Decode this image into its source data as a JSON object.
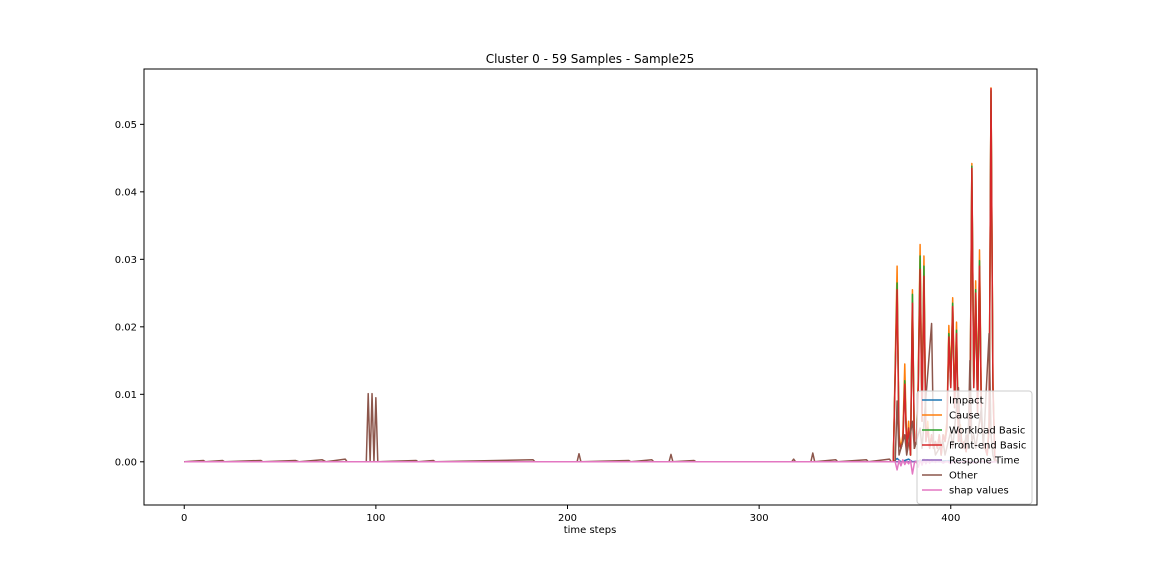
{
  "chart_data": {
    "type": "line",
    "title": "Cluster 0 - 59 Samples - Sample25",
    "xlabel": "time steps",
    "ylabel": "",
    "xlim": [
      -21,
      445
    ],
    "ylim": [
      -0.0064,
      0.0582
    ],
    "xticks": [
      0,
      100,
      200,
      300,
      400
    ],
    "xtick_labels": [
      "0",
      "100",
      "200",
      "300",
      "400"
    ],
    "yticks": [
      0.0,
      0.01,
      0.02,
      0.03,
      0.04,
      0.05
    ],
    "ytick_labels": [
      "0.00",
      "0.01",
      "0.02",
      "0.03",
      "0.04",
      "0.05"
    ],
    "grid": false,
    "legend_position": "lower-right",
    "series": [
      {
        "name": "Impact",
        "color": "#1f77b4",
        "points": [
          [
            0,
            0
          ],
          [
            100,
            0
          ],
          [
            200,
            0
          ],
          [
            300,
            0
          ],
          [
            370,
            0
          ],
          [
            372,
            0.0005
          ],
          [
            374,
            0
          ],
          [
            378,
            0.0004
          ],
          [
            380,
            0
          ],
          [
            388,
            0.0003
          ],
          [
            390,
            0
          ],
          [
            400,
            0.0002
          ],
          [
            410,
            0
          ],
          [
            420,
            0
          ],
          [
            422,
            0
          ]
        ]
      },
      {
        "name": "Cause",
        "color": "#ff7f0e",
        "points": [
          [
            0,
            0
          ],
          [
            370,
            0
          ],
          [
            372,
            0.029
          ],
          [
            373,
            0.004
          ],
          [
            374,
            0.002
          ],
          [
            375,
            0.004
          ],
          [
            376,
            0.0145
          ],
          [
            377,
            0.002
          ],
          [
            378,
            0.006
          ],
          [
            379,
            0.001
          ],
          [
            380,
            0.0255
          ],
          [
            381,
            0.002
          ],
          [
            382,
            0.003
          ],
          [
            383,
            0.012
          ],
          [
            384,
            0.0322
          ],
          [
            385,
            0.007
          ],
          [
            386,
            0.0305
          ],
          [
            387,
            0.003
          ],
          [
            388,
            0.006
          ],
          [
            389,
            0.002
          ],
          [
            390,
            0.004
          ],
          [
            391,
            0.002
          ],
          [
            392,
            0.003
          ],
          [
            393,
            0.002
          ],
          [
            394,
            0.004
          ],
          [
            395,
            0.001
          ],
          [
            396,
            0.004
          ],
          [
            397,
            0.0035
          ],
          [
            398,
            0.006
          ],
          [
            399,
            0.0202
          ],
          [
            400,
            0.012
          ],
          [
            401,
            0.0243
          ],
          [
            402,
            0.009
          ],
          [
            403,
            0.0207
          ],
          [
            404,
            0.003
          ],
          [
            405,
            0.0055
          ],
          [
            406,
            0.002
          ],
          [
            407,
            0.003
          ],
          [
            408,
            0.0015
          ],
          [
            409,
            0.004
          ],
          [
            410,
            0.0055
          ],
          [
            411,
            0.0442
          ],
          [
            412,
            0.012
          ],
          [
            413,
            0.0268
          ],
          [
            414,
            0.008
          ],
          [
            415,
            0.0314
          ],
          [
            416,
            0.007
          ],
          [
            417,
            0.003
          ],
          [
            418,
            0.002
          ],
          [
            419,
            0.001
          ],
          [
            420,
            0.006
          ],
          [
            421,
            0.0554
          ],
          [
            422,
            0.012
          ],
          [
            423,
            0.0005
          ],
          [
            424,
            0
          ]
        ]
      },
      {
        "name": "Workload Basic",
        "color": "#2ca02c",
        "points": [
          [
            0,
            0
          ],
          [
            370,
            0
          ],
          [
            372,
            0.0265
          ],
          [
            373,
            0.003
          ],
          [
            374,
            0.002
          ],
          [
            375,
            0.003
          ],
          [
            376,
            0.012
          ],
          [
            377,
            0.002
          ],
          [
            378,
            0.005
          ],
          [
            379,
            0.001
          ],
          [
            380,
            0.0248
          ],
          [
            381,
            0.002
          ],
          [
            382,
            0.003
          ],
          [
            383,
            0.011
          ],
          [
            384,
            0.0305
          ],
          [
            385,
            0.006
          ],
          [
            386,
            0.029
          ],
          [
            387,
            0.003
          ],
          [
            388,
            0.005
          ],
          [
            389,
            0.002
          ],
          [
            390,
            0.004
          ],
          [
            391,
            0.002
          ],
          [
            392,
            0.003
          ],
          [
            393,
            0.002
          ],
          [
            394,
            0.004
          ],
          [
            395,
            0.001
          ],
          [
            396,
            0.004
          ],
          [
            397,
            0.003
          ],
          [
            398,
            0.005
          ],
          [
            399,
            0.019
          ],
          [
            400,
            0.011
          ],
          [
            401,
            0.0235
          ],
          [
            402,
            0.008
          ],
          [
            403,
            0.0195
          ],
          [
            404,
            0.003
          ],
          [
            405,
            0.005
          ],
          [
            406,
            0.002
          ],
          [
            407,
            0.003
          ],
          [
            408,
            0.0015
          ],
          [
            409,
            0.004
          ],
          [
            410,
            0.005
          ],
          [
            411,
            0.0438
          ],
          [
            412,
            0.011
          ],
          [
            413,
            0.0255
          ],
          [
            414,
            0.007
          ],
          [
            415,
            0.0298
          ],
          [
            416,
            0.006
          ],
          [
            417,
            0.003
          ],
          [
            418,
            0.002
          ],
          [
            419,
            0.001
          ],
          [
            420,
            0.005
          ],
          [
            421,
            0.055
          ],
          [
            422,
            0.011
          ],
          [
            423,
            0.0005
          ],
          [
            424,
            0
          ]
        ]
      },
      {
        "name": "Front-end Basic",
        "color": "#d62728",
        "points": [
          [
            0,
            0
          ],
          [
            370,
            0
          ],
          [
            372,
            0.0255
          ],
          [
            373,
            0.003
          ],
          [
            374,
            0.002
          ],
          [
            375,
            0.003
          ],
          [
            376,
            0.0115
          ],
          [
            377,
            0.002
          ],
          [
            378,
            0.005
          ],
          [
            379,
            0.001
          ],
          [
            380,
            0.0235
          ],
          [
            381,
            0.002
          ],
          [
            382,
            0.003
          ],
          [
            383,
            0.01
          ],
          [
            384,
            0.0285
          ],
          [
            385,
            0.006
          ],
          [
            386,
            0.0275
          ],
          [
            387,
            0.003
          ],
          [
            388,
            0.005
          ],
          [
            389,
            0.002
          ],
          [
            390,
            0.004
          ],
          [
            391,
            0.002
          ],
          [
            392,
            0.003
          ],
          [
            393,
            0.002
          ],
          [
            394,
            0.004
          ],
          [
            395,
            0.001
          ],
          [
            396,
            0.004
          ],
          [
            397,
            0.003
          ],
          [
            398,
            0.005
          ],
          [
            399,
            0.0185
          ],
          [
            400,
            0.011
          ],
          [
            401,
            0.023
          ],
          [
            402,
            0.008
          ],
          [
            403,
            0.019
          ],
          [
            404,
            0.003
          ],
          [
            405,
            0.005
          ],
          [
            406,
            0.002
          ],
          [
            407,
            0.003
          ],
          [
            408,
            0.0015
          ],
          [
            409,
            0.004
          ],
          [
            410,
            0.005
          ],
          [
            411,
            0.0435
          ],
          [
            412,
            0.011
          ],
          [
            413,
            0.025
          ],
          [
            414,
            0.007
          ],
          [
            415,
            0.029
          ],
          [
            416,
            0.006
          ],
          [
            417,
            0.003
          ],
          [
            418,
            0.002
          ],
          [
            419,
            0.001
          ],
          [
            420,
            0.005
          ],
          [
            421,
            0.0553
          ],
          [
            422,
            0.011
          ],
          [
            423,
            0.0005
          ],
          [
            424,
            0
          ]
        ]
      },
      {
        "name": "Respone Time",
        "color": "#9467bd",
        "points": [
          [
            0,
            0
          ],
          [
            100,
            0
          ],
          [
            200,
            0
          ],
          [
            300,
            0
          ],
          [
            370,
            0
          ],
          [
            390,
            0
          ],
          [
            400,
            0
          ],
          [
            410,
            0
          ],
          [
            420,
            0
          ],
          [
            424,
            0
          ]
        ]
      },
      {
        "name": "Other",
        "color": "#8c564b",
        "points": [
          [
            0,
            0
          ],
          [
            10,
            0.0002
          ],
          [
            11,
            0
          ],
          [
            20,
            0.0002
          ],
          [
            21,
            0
          ],
          [
            40,
            0.0002
          ],
          [
            41,
            0
          ],
          [
            58,
            0.0002
          ],
          [
            60,
            0
          ],
          [
            72,
            0.0003
          ],
          [
            74,
            0
          ],
          [
            84,
            0.0004
          ],
          [
            85,
            0
          ],
          [
            95,
            0
          ],
          [
            96,
            0.0101
          ],
          [
            97,
            0
          ],
          [
            98,
            0.0101
          ],
          [
            99,
            0
          ],
          [
            100,
            0.0095
          ],
          [
            101,
            0
          ],
          [
            121,
            0.0002
          ],
          [
            122,
            0
          ],
          [
            130,
            0.0002
          ],
          [
            131,
            0
          ],
          [
            182,
            0.0003
          ],
          [
            183,
            0
          ],
          [
            205,
            0
          ],
          [
            206,
            0.0012
          ],
          [
            207,
            0
          ],
          [
            232,
            0.0002
          ],
          [
            233,
            0
          ],
          [
            244,
            0.0003
          ],
          [
            245,
            0
          ],
          [
            253,
            0
          ],
          [
            254,
            0.0011
          ],
          [
            255,
            0
          ],
          [
            266,
            0.0002
          ],
          [
            267,
            0
          ],
          [
            317,
            0
          ],
          [
            318,
            0.0004
          ],
          [
            319,
            0
          ],
          [
            327,
            0
          ],
          [
            328,
            0.0013
          ],
          [
            329,
            0
          ],
          [
            340,
            0.0003
          ],
          [
            341,
            0
          ],
          [
            356,
            0.0003
          ],
          [
            357,
            0
          ],
          [
            368,
            0.0004
          ],
          [
            369,
            0
          ],
          [
            371,
            0
          ],
          [
            372,
            0.009
          ],
          [
            373,
            0.001
          ],
          [
            376,
            0.004
          ],
          [
            377,
            0.001
          ],
          [
            380,
            0.006
          ],
          [
            381,
            0.002
          ],
          [
            384,
            0.005
          ],
          [
            385,
            0.002
          ],
          [
            390,
            0.0205
          ],
          [
            391,
            0.003
          ],
          [
            392,
            0.001
          ],
          [
            396,
            0.003
          ],
          [
            397,
            0.001
          ],
          [
            400,
            0.0045
          ],
          [
            401,
            0.002
          ],
          [
            404,
            0.011
          ],
          [
            405,
            0.003
          ],
          [
            407,
            0.002
          ],
          [
            408,
            0.004
          ],
          [
            409,
            0.002
          ],
          [
            410,
            0.015
          ],
          [
            411,
            0.003
          ],
          [
            412,
            0.004
          ],
          [
            413,
            0.002
          ],
          [
            416,
            0.008
          ],
          [
            417,
            0.002
          ],
          [
            420,
            0.019
          ],
          [
            421,
            0.004
          ],
          [
            422,
            0.001
          ],
          [
            423,
            0
          ]
        ]
      },
      {
        "name": "shap values",
        "color": "#e377c2",
        "points": [
          [
            0,
            0
          ],
          [
            100,
            0
          ],
          [
            200,
            0
          ],
          [
            300,
            0
          ],
          [
            370,
            0
          ],
          [
            371,
            0
          ],
          [
            372,
            -0.0012
          ],
          [
            373,
            0.0002
          ],
          [
            374,
            -0.0006
          ],
          [
            375,
            0.0003
          ],
          [
            376,
            -0.0004
          ],
          [
            377,
            0.0001
          ],
          [
            378,
            -0.0003
          ],
          [
            379,
            0.0002
          ],
          [
            380,
            -0.0018
          ],
          [
            381,
            -0.0002
          ],
          [
            382,
            0.0001
          ],
          [
            383,
            -0.0008
          ],
          [
            384,
            0.0003
          ],
          [
            385,
            -0.0005
          ],
          [
            386,
            0.0004
          ],
          [
            387,
            -0.0003
          ],
          [
            388,
            0.0002
          ],
          [
            389,
            -0.0002
          ],
          [
            390,
            0.0003
          ],
          [
            392,
            -0.0001
          ],
          [
            394,
            0.0002
          ],
          [
            396,
            -0.0002
          ],
          [
            398,
            0.0001
          ],
          [
            400,
            -0.0003
          ],
          [
            402,
            0.0002
          ],
          [
            404,
            -0.0001
          ],
          [
            408,
            0.0001
          ],
          [
            412,
            -0.0002
          ],
          [
            416,
            0.0001
          ],
          [
            420,
            -0.0001
          ],
          [
            424,
            0
          ]
        ]
      }
    ]
  }
}
